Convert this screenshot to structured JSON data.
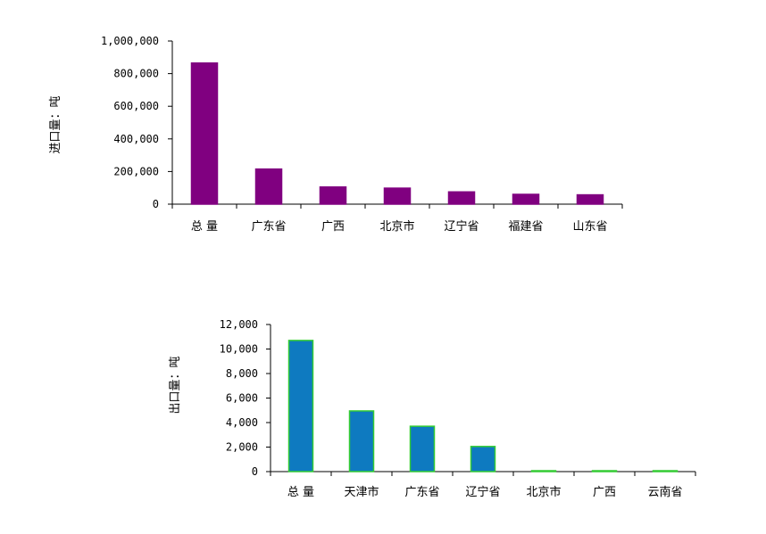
{
  "chart_data": [
    {
      "type": "bar",
      "title": "",
      "ylabel": "进口量：吨",
      "xlabel": "",
      "ylim": [
        0,
        1000000
      ],
      "yticks": [
        0,
        200000,
        400000,
        600000,
        800000,
        1000000
      ],
      "ytick_labels": [
        "0",
        "200,000",
        "400,000",
        "600,000",
        "800,000",
        "1,000,000"
      ],
      "categories": [
        "总 量",
        "广东省",
        "广西",
        "北京市",
        "辽宁省",
        "福建省",
        "山东省"
      ],
      "values": [
        865000,
        215000,
        105000,
        98000,
        75000,
        60000,
        57000
      ],
      "bar_color": "#800080",
      "bar_stroke": "#800080",
      "grid": false,
      "legend": "none"
    },
    {
      "type": "bar",
      "title": "",
      "ylabel": "出口量：吨",
      "xlabel": "",
      "ylim": [
        0,
        12000
      ],
      "yticks": [
        0,
        2000,
        4000,
        6000,
        8000,
        10000,
        12000
      ],
      "ytick_labels": [
        "0",
        "2,000",
        "4,000",
        "6,000",
        "8,000",
        "10,000",
        "12,000"
      ],
      "categories": [
        "总 量",
        "天津市",
        "广东省",
        "辽宁省",
        "北京市",
        "广西",
        "云南省"
      ],
      "values": [
        10700,
        4950,
        3700,
        2050,
        40,
        30,
        25
      ],
      "bar_color": "#0E7AC0",
      "bar_stroke": "#33CC33",
      "grid": false,
      "legend": "none"
    }
  ]
}
